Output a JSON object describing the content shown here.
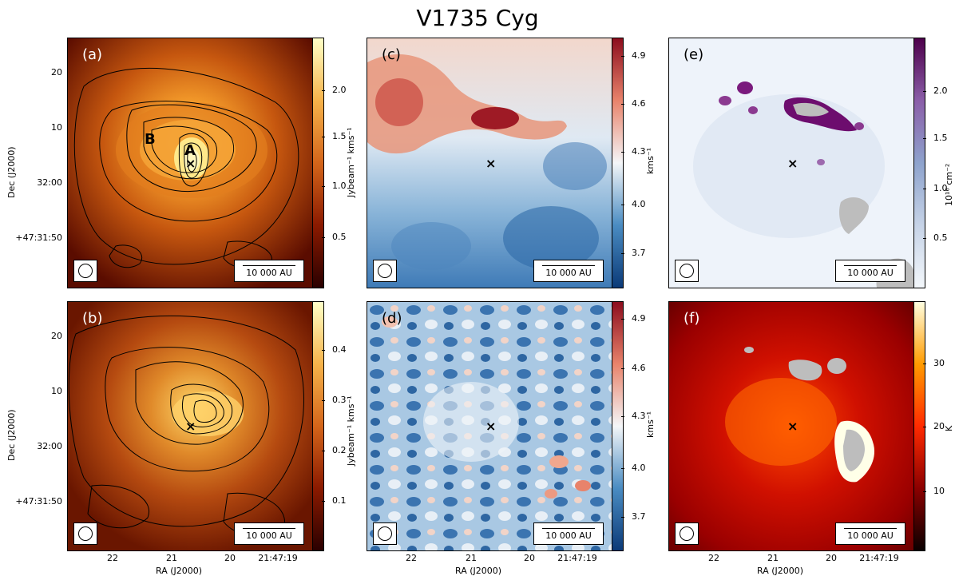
{
  "title": "V1735 Cyg",
  "axes": {
    "dec_label": "Dec (J2000)",
    "ra_label": "RA (J2000)",
    "dec_ticks": [
      "20",
      "10",
      "32:00",
      "+47:31:50"
    ],
    "ra_ticks": [
      "22",
      "21",
      "20",
      "21:47:19"
    ]
  },
  "scalebar_text": "10 000 AU",
  "panels": {
    "a": {
      "label": "(a)",
      "cbar_ticks": [
        "2.0",
        "1.5",
        "1.0",
        "0.5"
      ],
      "cbar_unit": "Jybeam⁻¹ kms⁻¹",
      "letter_a": "A",
      "letter_b": "B"
    },
    "b": {
      "label": "(b)",
      "cbar_ticks": [
        "0.4",
        "0.3",
        "0.2",
        "0.1"
      ],
      "cbar_unit": "Jybeam⁻¹ kms⁻¹"
    },
    "c": {
      "label": "(c)",
      "cbar_ticks": [
        "4.9",
        "4.6",
        "4.3",
        "4.0",
        "3.7"
      ],
      "cbar_unit": "kms⁻¹"
    },
    "d": {
      "label": "(d)",
      "cbar_ticks": [
        "4.9",
        "4.6",
        "4.3",
        "4.0",
        "3.7"
      ],
      "cbar_unit": "kms⁻¹"
    },
    "e": {
      "label": "(e)",
      "cbar_ticks": [
        "2.0",
        "1.5",
        "1.0",
        "0.5"
      ],
      "cbar_unit": "10¹⁶ cm⁻²"
    },
    "f": {
      "label": "(f)",
      "cbar_ticks": [
        "30",
        "20",
        "10"
      ],
      "cbar_unit": "K"
    }
  },
  "source_marker": "×",
  "colors": {
    "afmhot_dark": "#5a0c00",
    "afmhot_mid": "#d26a12",
    "afmhot_light": "#fff8a8",
    "rdbu_red": "#8c0d1d",
    "rdbu_white": "#f4f6f8",
    "rdbu_blue": "#1c4f8e",
    "bupu_light": "#eef3fa",
    "bupu_dark": "#6d0d6e",
    "hot_dark": "#6b0000",
    "hot_bright": "#ff5a00",
    "hot_white": "#ffffe8",
    "mask_gray": "#bdbdbd"
  }
}
